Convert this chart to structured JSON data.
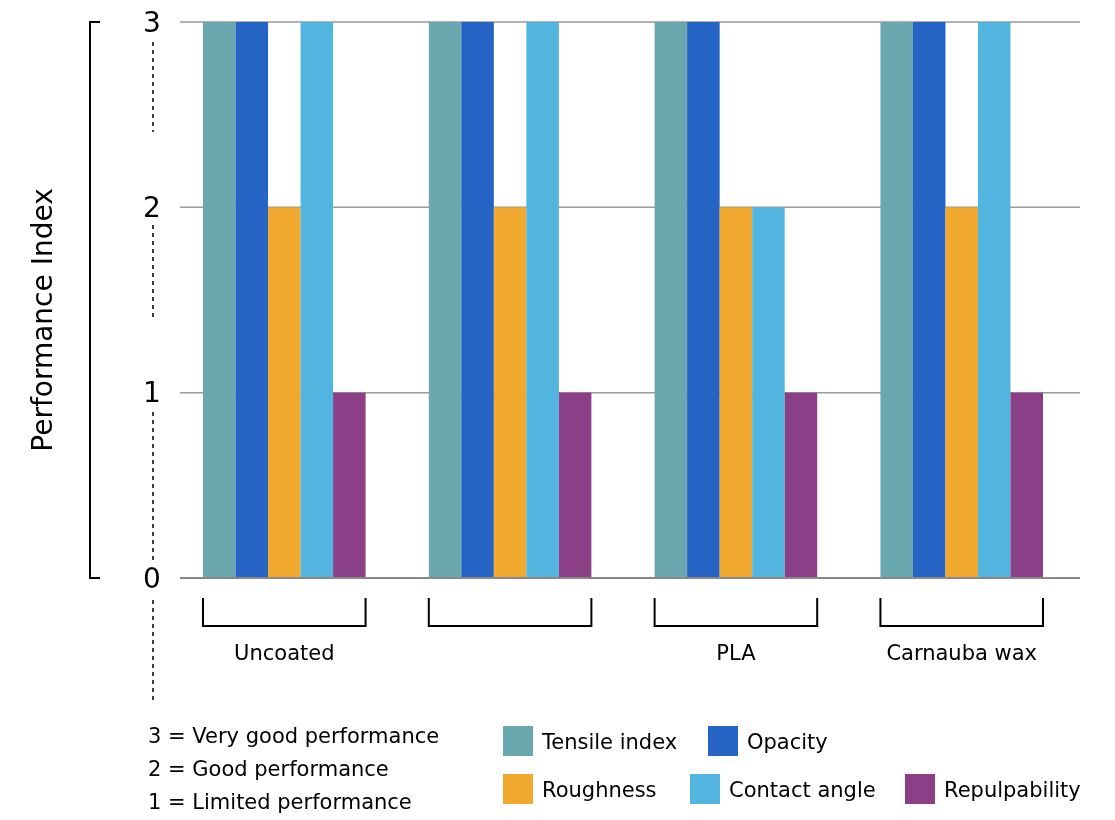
{
  "chart_data": {
    "type": "bar",
    "ylabel": "Performance Index",
    "categories": [
      "Uncoated",
      null,
      "PLA",
      "Carnauba wax"
    ],
    "series": [
      {
        "name": "Tensile index",
        "color": "#6aa8b0",
        "values": [
          3,
          3,
          3,
          3
        ]
      },
      {
        "name": "Opacity",
        "color": "#2563c4",
        "values": [
          3,
          3,
          3,
          3
        ]
      },
      {
        "name": "Roughness",
        "color": "#f0a92e",
        "values": [
          2,
          2,
          2,
          2
        ]
      },
      {
        "name": "Contact angle",
        "color": "#52b5e0",
        "values": [
          3,
          3,
          2,
          3
        ]
      },
      {
        "name": "Repulpability",
        "color": "#8b3f87",
        "values": [
          1,
          1,
          1,
          1
        ]
      }
    ],
    "ylim": [
      0,
      3
    ],
    "yticks": [
      0,
      1,
      2,
      3
    ],
    "grid": "y",
    "legend": "bottom",
    "annotations": [
      "3 = Very good performance",
      "2 = Good performance",
      "1 = Limited performance"
    ]
  }
}
